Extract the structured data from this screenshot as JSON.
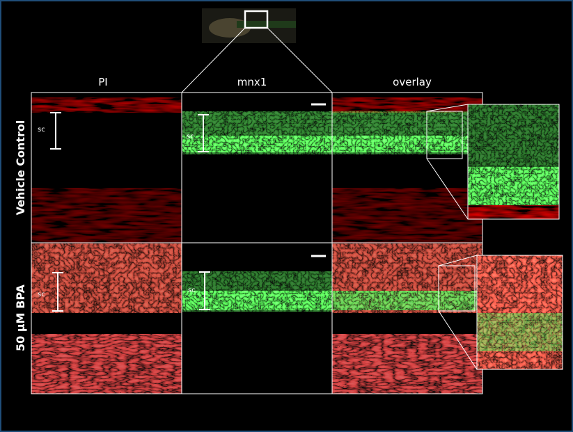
{
  "columns": [
    "PI",
    "mnx1",
    "overlay"
  ],
  "rows": [
    {
      "label": "Vehicle Control",
      "region_labels": [
        "sc",
        "sc"
      ]
    },
    {
      "label": "50 µM BPA",
      "region_labels": [
        "sc",
        "sc"
      ]
    }
  ]
}
